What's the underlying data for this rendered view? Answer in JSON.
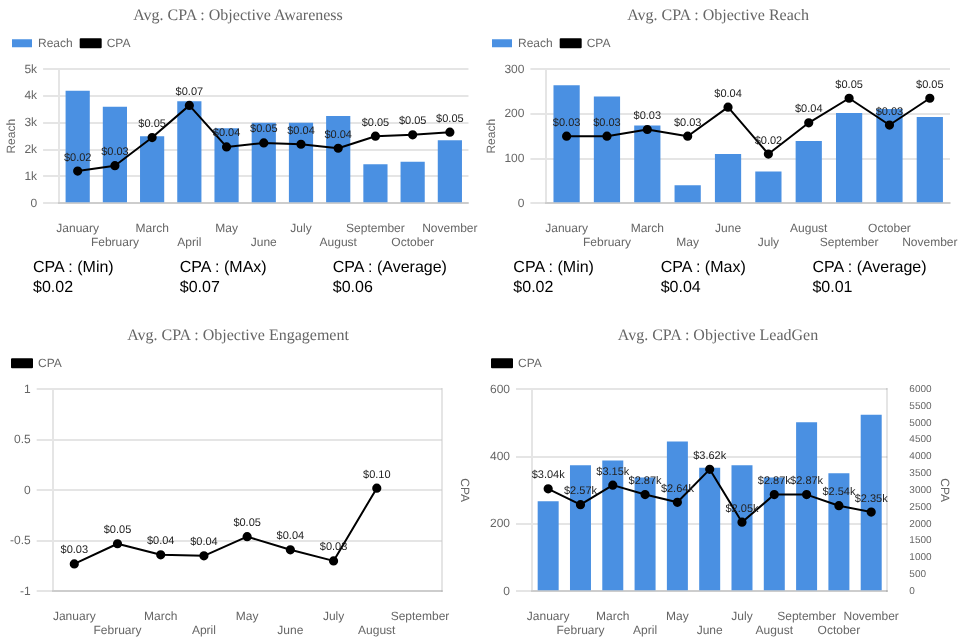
{
  "chart_data": [
    {
      "type": "bar",
      "title": "Avg. CPA : Objective Awareness",
      "ylabel": "Reach",
      "categories": [
        "January",
        "February",
        "March",
        "April",
        "May",
        "June",
        "July",
        "August",
        "September",
        "October",
        "November"
      ],
      "ylim": [
        0,
        5
      ],
      "yticks": [
        0,
        {
          "value": 1,
          "label": "1k"
        },
        {
          "value": 2,
          "label": "2k"
        },
        {
          "value": 3,
          "label": "3k"
        },
        {
          "value": 4,
          "label": "4k"
        },
        {
          "value": 5,
          "label": "5k"
        }
      ],
      "y2lim": [
        0,
        0.1
      ],
      "grid": "y",
      "legend": "top left",
      "marker": "circle",
      "series": [
        {
          "name": "Reach",
          "color": "#4a90e2",
          "values": [
            4.2,
            3.6,
            2.5,
            3.8,
            2.8,
            3.0,
            3.0,
            3.25,
            1.45,
            1.55,
            2.35
          ]
        },
        {
          "name": "CPA",
          "type": "line",
          "axis": "y2",
          "color": "#000000",
          "values": [
            0.024,
            0.028,
            0.049,
            0.073,
            0.042,
            0.045,
            0.044,
            0.041,
            0.05,
            0.051,
            0.053
          ],
          "value_labels": [
            "$0.02",
            "$0.03",
            "$0.05",
            "$0.07",
            "$0.04",
            "$0.05",
            "$0.04",
            "$0.04",
            "$0.05",
            "$0.05",
            "$0.05"
          ]
        }
      ],
      "annotations": [
        "CPA : (Min)\n$0.02",
        "CPA : (MAx)\n$0.07",
        "CPA : (Average)\n$0.06"
      ]
    },
    {
      "type": "bar",
      "title": "Avg. CPA : Objective Reach",
      "ylabel": "Reach",
      "categories": [
        "January",
        "February",
        "March",
        "May",
        "June",
        "July",
        "August",
        "September",
        "October",
        "November"
      ],
      "ylim": [
        0,
        300
      ],
      "yticks": [
        0,
        100,
        200,
        300
      ],
      "y2lim": [
        0,
        0.06
      ],
      "grid": "y",
      "legend": "top left",
      "marker": "circle",
      "series": [
        {
          "name": "Reach",
          "color": "#4a90e2",
          "values": [
            264,
            239,
            174,
            40,
            110,
            71,
            139,
            202,
            211,
            193
          ]
        },
        {
          "name": "CPA",
          "type": "line",
          "axis": "y2",
          "color": "#000000",
          "values": [
            0.03,
            0.03,
            0.033,
            0.03,
            0.043,
            0.022,
            0.036,
            0.047,
            0.035,
            0.047
          ],
          "value_labels": [
            "$0.03",
            "$0.03",
            "$0.03",
            "$0.03",
            "$0.04",
            "$0.02",
            "$0.04",
            "$0.05",
            "$0.03",
            "$0.05"
          ]
        }
      ],
      "annotations": [
        "CPA : (Min)\n$0.02",
        "CPA : (Max)\n$0.04",
        "CPA : (Average)\n$0.01"
      ]
    },
    {
      "type": "line",
      "title": "Avg. CPA : Objective Engagement",
      "y2label": "CPA",
      "categories": [
        "January",
        "February",
        "March",
        "April",
        "May",
        "June",
        "July",
        "August",
        "September"
      ],
      "ylim": [
        -1,
        1
      ],
      "yticks": [
        -1,
        -0.5,
        0,
        0.5,
        1
      ],
      "y2lim": [
        0,
        0.2
      ],
      "grid": "y",
      "legend": "top left",
      "marker": "circle",
      "series": [
        {
          "name": "CPA",
          "axis": "y2",
          "color": "#000000",
          "values": [
            0.027,
            0.047,
            0.036,
            0.035,
            0.054,
            0.041,
            0.03,
            0.102,
            null
          ],
          "value_labels": [
            "$0.03",
            "$0.05",
            "$0.04",
            "$0.04",
            "$0.05",
            "$0.04",
            "$0.03",
            "$0.10",
            null
          ]
        }
      ]
    },
    {
      "type": "bar",
      "title": "Avg. CPA : Objective LeadGen",
      "y2label": "CPA",
      "categories": [
        "January",
        "February",
        "March",
        "April",
        "May",
        "June",
        "July",
        "August",
        "September",
        "October",
        "November"
      ],
      "ylim": [
        0,
        600
      ],
      "yticks": [
        0,
        200,
        400,
        600
      ],
      "y2lim": [
        0,
        6000
      ],
      "y2ticks": [
        0,
        500,
        1000,
        1500,
        2000,
        2500,
        3000,
        3500,
        4000,
        4500,
        5000,
        5500,
        6000
      ],
      "grid": "y",
      "legend": "top left",
      "marker": "circle",
      "series": [
        {
          "color": "#4a90e2",
          "values": [
            267,
            374,
            388,
            338,
            445,
            367,
            374,
            338,
            502,
            350,
            524
          ]
        },
        {
          "name": "CPA",
          "type": "line",
          "axis": "y2",
          "color": "#000000",
          "values": [
            3040,
            2570,
            3150,
            2870,
            2640,
            3620,
            2050,
            2870,
            2870,
            2540,
            2350
          ],
          "value_labels": [
            "$3.04k",
            "$2.57k",
            "$3.15k",
            "$2.87k",
            "$2.64k",
            "$3.62k",
            "$2.05k",
            "$2.87k",
            "$2.87k",
            "$2.54k",
            "$2.35k"
          ]
        }
      ]
    }
  ]
}
